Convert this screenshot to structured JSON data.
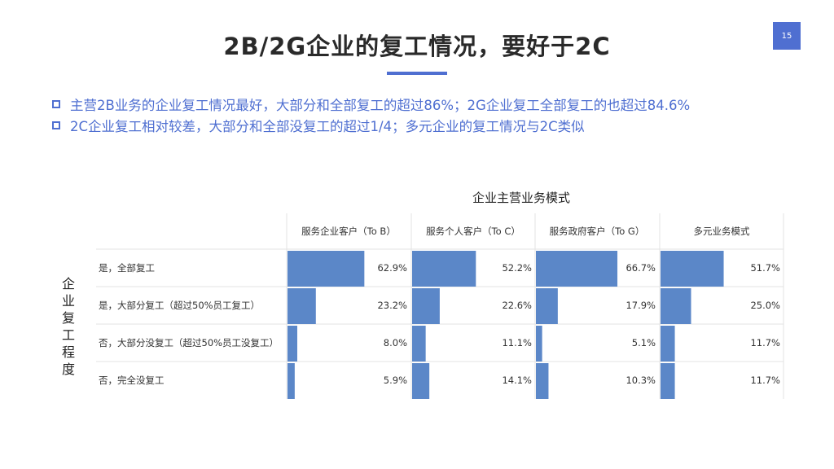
{
  "page_number": "15",
  "title": "2B/2G企业的复工情况，要好于2C",
  "bullets": [
    "主营2B业务的企业复工情况最好，大部分和全部复工的超过86%；2G企业复工全部复工的也超过84.6%",
    "2C企业复工相对较差，大部分和全部没复工的超过1/4；多元企业的复工情况与2C类似"
  ],
  "colors": {
    "accent": "#4f6fd1",
    "bar": "#5b87c8"
  },
  "chart_data": {
    "type": "bar",
    "title": "企业主营业务模式",
    "ylabel": "企业复工程度",
    "columns": [
      "服务企业客户（To B）",
      "服务个人客户（To C）",
      "服务政府客户（To G）",
      "多元业务模式"
    ],
    "categories": [
      "是，全部复工",
      "是，大部分复工（超过50%员工复工）",
      "否，大部分没复工（超过50%员工没复工）",
      "否，完全没复工"
    ],
    "series": [
      {
        "name": "服务企业客户（To B）",
        "values": [
          62.9,
          23.2,
          8.0,
          5.9
        ]
      },
      {
        "name": "服务个人客户（To C）",
        "values": [
          52.2,
          22.6,
          11.1,
          14.1
        ]
      },
      {
        "name": "服务政府客户（To G）",
        "values": [
          66.7,
          17.9,
          5.1,
          10.3
        ]
      },
      {
        "name": "多元业务模式",
        "values": [
          51.7,
          25.0,
          11.7,
          11.7
        ]
      }
    ],
    "labels": [
      [
        "62.9%",
        "23.2%",
        "8.0%",
        "5.9%"
      ],
      [
        "52.2%",
        "22.6%",
        "11.1%",
        "14.1%"
      ],
      [
        "66.7%",
        "17.9%",
        "5.1%",
        "10.3%"
      ],
      [
        "51.7%",
        "25.0%",
        "11.7%",
        "11.7%"
      ]
    ],
    "xlim": [
      0,
      100
    ]
  }
}
